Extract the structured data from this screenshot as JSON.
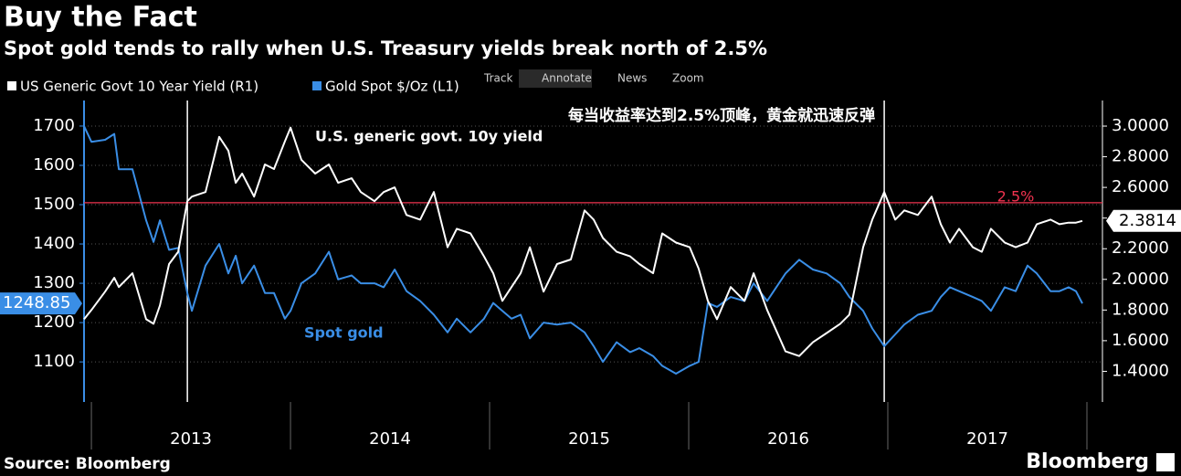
{
  "toolbar": [
    "Track",
    "Annotate",
    "News",
    "Zoom"
  ],
  "source": "Source: Bloomberg",
  "brand": "Bloomberg",
  "chart_data": {
    "type": "line",
    "title": "Buy the Fact",
    "subtitle": "Spot gold tends to rally when U.S. Treasury yields break north of 2.5%",
    "annotations": [
      "U.S. generic govt. 10y yield",
      "Spot gold",
      "每当收益率达到2.5%顶峰，黄金就迅速反弹"
    ],
    "x": [
      2012.963,
      2013.0,
      2013.069,
      2013.115,
      2013.138,
      2013.206,
      2013.275,
      2013.312,
      2013.344,
      2013.39,
      2013.436,
      2013.482,
      2013.505,
      2013.573,
      2013.642,
      2013.688,
      2013.725,
      2013.757,
      2013.817,
      2013.872,
      2013.917,
      2013.972,
      2014.0,
      2014.055,
      2014.124,
      2014.193,
      2014.239,
      2014.307,
      2014.353,
      2014.422,
      2014.468,
      2014.523,
      2014.583,
      2014.651,
      2014.72,
      2014.789,
      2014.835,
      2014.904,
      2014.972,
      2015.018,
      2015.064,
      2015.11,
      2015.156,
      2015.202,
      2015.271,
      2015.339,
      2015.408,
      2015.477,
      2015.523,
      2015.569,
      2015.638,
      2015.706,
      2015.752,
      2015.821,
      2015.867,
      2015.936,
      2016.005,
      2016.05,
      2016.096,
      2016.142,
      2016.211,
      2016.28,
      2016.326,
      2016.394,
      2016.486,
      2016.555,
      2016.624,
      2016.693,
      2016.761,
      2016.807,
      2016.876,
      2016.922,
      2016.982,
      2017.037,
      2017.083,
      2017.151,
      2017.22,
      2017.266,
      2017.312,
      2017.358,
      2017.427,
      2017.472,
      2017.518,
      2017.587,
      2017.642,
      2017.702,
      2017.748,
      2017.817,
      2017.862,
      2017.908,
      2017.945,
      2017.977
    ],
    "series": [
      {
        "name": "Gold Spot $/Oz  (L1)",
        "color": "#3a8ee6",
        "axis": "y",
        "last_label": "1248.85",
        "values": [
          1700,
          1660,
          1665,
          1680,
          1590,
          1590,
          1460,
          1405,
          1460,
          1385,
          1390,
          1275,
          1230,
          1345,
          1400,
          1325,
          1370,
          1300,
          1345,
          1275,
          1275,
          1210,
          1230,
          1300,
          1325,
          1380,
          1310,
          1320,
          1300,
          1300,
          1290,
          1335,
          1280,
          1255,
          1220,
          1175,
          1210,
          1175,
          1210,
          1250,
          1230,
          1210,
          1220,
          1160,
          1200,
          1195,
          1200,
          1175,
          1140,
          1100,
          1150,
          1125,
          1135,
          1115,
          1090,
          1070,
          1090,
          1100,
          1250,
          1240,
          1265,
          1255,
          1300,
          1255,
          1325,
          1360,
          1335,
          1325,
          1300,
          1265,
          1230,
          1185,
          1140,
          1170,
          1195,
          1220,
          1230,
          1265,
          1290,
          1280,
          1265,
          1255,
          1230,
          1290,
          1280,
          1345,
          1325,
          1280,
          1280,
          1290,
          1280,
          1248.85
        ]
      },
      {
        "name": "US Generic Govt 10 Year Yield  (R1)",
        "color": "#ffffff",
        "axis": "y2",
        "last_label": "2.3814",
        "values": [
          1.74,
          1.8,
          1.92,
          2.01,
          1.95,
          2.04,
          1.74,
          1.71,
          1.83,
          2.1,
          2.18,
          2.51,
          2.54,
          2.57,
          2.93,
          2.84,
          2.63,
          2.69,
          2.54,
          2.75,
          2.72,
          2.9,
          2.99,
          2.78,
          2.69,
          2.75,
          2.63,
          2.66,
          2.57,
          2.51,
          2.57,
          2.6,
          2.42,
          2.39,
          2.57,
          2.21,
          2.33,
          2.3,
          2.15,
          2.04,
          1.86,
          1.95,
          2.04,
          2.21,
          1.92,
          2.1,
          2.13,
          2.45,
          2.39,
          2.27,
          2.18,
          2.15,
          2.1,
          2.04,
          2.3,
          2.24,
          2.21,
          2.07,
          1.86,
          1.74,
          1.95,
          1.86,
          2.04,
          1.8,
          1.53,
          1.5,
          1.59,
          1.65,
          1.71,
          1.77,
          2.21,
          2.39,
          2.57,
          2.39,
          2.45,
          2.42,
          2.54,
          2.36,
          2.24,
          2.33,
          2.21,
          2.18,
          2.33,
          2.24,
          2.21,
          2.24,
          2.36,
          2.39,
          2.36,
          2.37,
          2.37,
          2.3814
        ]
      }
    ],
    "xlim": [
      2012.963,
      2018.078
    ],
    "xticks": [
      {
        "value": 2013.5,
        "label": "2013"
      },
      {
        "value": 2014.5,
        "label": "2014"
      },
      {
        "value": 2015.5,
        "label": "2015"
      },
      {
        "value": 2016.5,
        "label": "2016"
      },
      {
        "value": 2017.5,
        "label": "2017"
      }
    ],
    "ylim": [
      998,
      1765
    ],
    "yticks": [
      1100,
      1200,
      1300,
      1400,
      1500,
      1600,
      1700
    ],
    "y2lim": [
      1.2,
      3.167
    ],
    "y2ticks": [
      {
        "value": 1.4,
        "label": "1.4000"
      },
      {
        "value": 1.6,
        "label": "1.6000"
      },
      {
        "value": 1.8,
        "label": "1.8000"
      },
      {
        "value": 2.0,
        "label": "2.0000"
      },
      {
        "value": 2.2,
        "label": "2.2000"
      },
      {
        "value": 2.4,
        "label": "2.4000"
      },
      {
        "value": 2.6,
        "label": "2.6000"
      },
      {
        "value": 2.8,
        "label": "2.8000"
      },
      {
        "value": 3.0,
        "label": "3.0000"
      }
    ],
    "vlines": [
      2013.482,
      2016.982
    ],
    "hline": {
      "value": 2.5,
      "label": "2.5%",
      "color": "#f0334f",
      "axis": "y2"
    },
    "grid": true
  }
}
